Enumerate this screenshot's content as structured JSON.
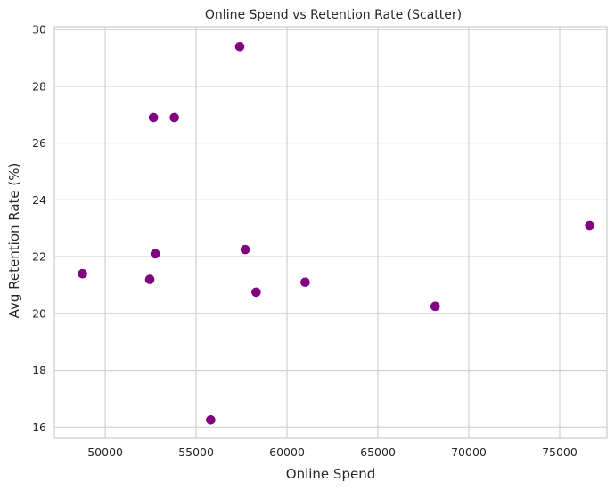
{
  "chart_data": {
    "type": "scatter",
    "title": "Online Spend vs Retention Rate (Scatter)",
    "xlabel": "Online Spend",
    "ylabel": "Avg Retention Rate (%)",
    "xlim": [
      47200,
      77600
    ],
    "ylim": [
      15.6,
      30.1
    ],
    "x_ticks": [
      50000,
      55000,
      60000,
      65000,
      70000,
      75000
    ],
    "y_ticks": [
      16,
      18,
      20,
      22,
      24,
      26,
      28,
      30
    ],
    "grid": true,
    "marker_color": "#800080",
    "points": [
      {
        "x": 48750,
        "y": 21.4
      },
      {
        "x": 52450,
        "y": 21.2
      },
      {
        "x": 52650,
        "y": 26.9
      },
      {
        "x": 52750,
        "y": 22.1
      },
      {
        "x": 53800,
        "y": 26.9
      },
      {
        "x": 55800,
        "y": 16.25
      },
      {
        "x": 57400,
        "y": 29.4
      },
      {
        "x": 57700,
        "y": 22.25
      },
      {
        "x": 58300,
        "y": 20.75
      },
      {
        "x": 61000,
        "y": 21.1
      },
      {
        "x": 68150,
        "y": 20.25
      },
      {
        "x": 76650,
        "y": 23.1
      }
    ]
  }
}
